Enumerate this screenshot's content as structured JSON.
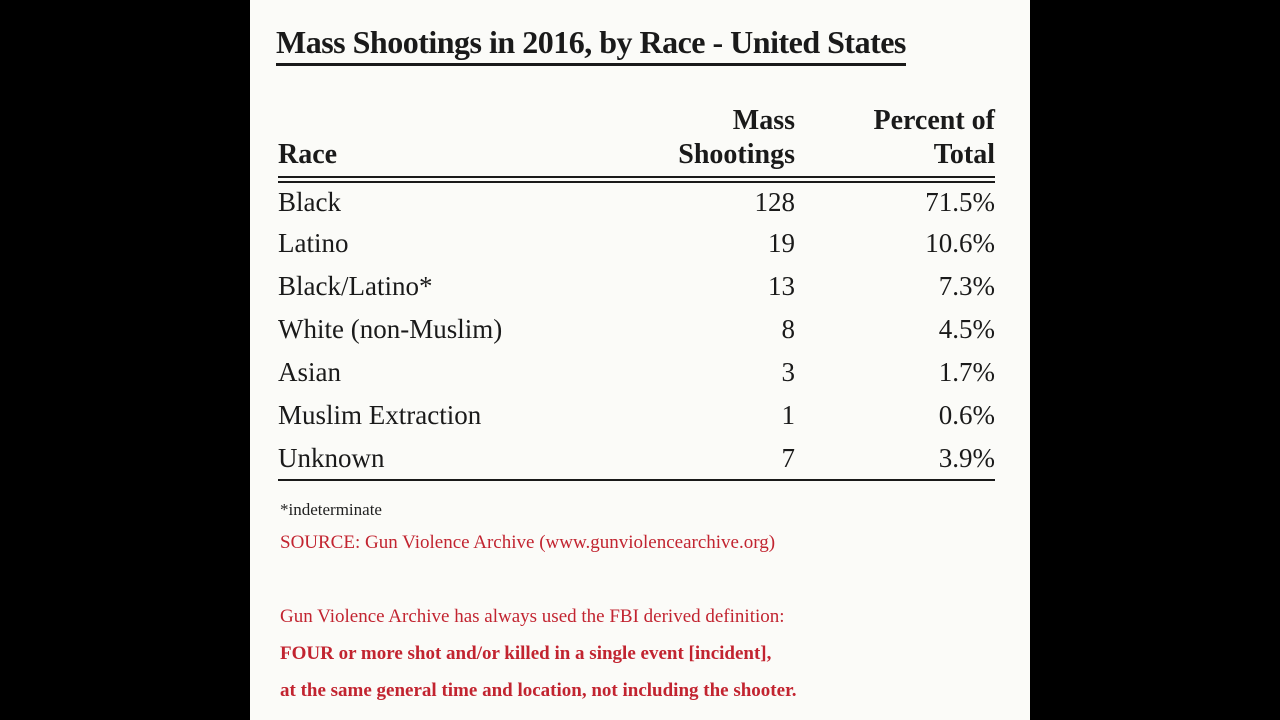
{
  "chart_data": {
    "type": "table",
    "title": "Mass Shootings in 2016, by Race - United States",
    "columns": [
      "Race",
      "Mass Shootings",
      "Percent of Total"
    ],
    "rows": [
      [
        "Black",
        128,
        "71.5%"
      ],
      [
        "Latino",
        19,
        "10.6%"
      ],
      [
        "Black/Latino*",
        13,
        "7.3%"
      ],
      [
        "White (non-Muslim)",
        8,
        "4.5%"
      ],
      [
        "Asian",
        3,
        "1.7%"
      ],
      [
        "Muslim Extraction",
        1,
        "0.6%"
      ],
      [
        "Unknown",
        7,
        "3.9%"
      ]
    ],
    "footnote": "*indeterminate",
    "source": "SOURCE: Gun Violence Archive (www.gunviolencearchive.org)"
  },
  "title": "Mass Shootings in 2016, by Race - United States",
  "table": {
    "headers": {
      "race": "Race",
      "mass_line1": "Mass",
      "mass_line2": "Shootings",
      "pct_line1": "Percent of",
      "pct_line2": "Total"
    },
    "rows": [
      {
        "race": "Black",
        "shootings": "128",
        "percent": "71.5%"
      },
      {
        "race": "Latino",
        "shootings": "19",
        "percent": "10.6%"
      },
      {
        "race": "Black/Latino*",
        "shootings": "13",
        "percent": "7.3%"
      },
      {
        "race": "White (non-Muslim)",
        "shootings": "8",
        "percent": "4.5%"
      },
      {
        "race": "Asian",
        "shootings": "3",
        "percent": "1.7%"
      },
      {
        "race": "Muslim Extraction",
        "shootings": "1",
        "percent": "0.6%"
      },
      {
        "race": "Unknown",
        "shootings": "7",
        "percent": "3.9%"
      }
    ]
  },
  "footnote": "*indeterminate",
  "source_line": "SOURCE: Gun Violence Archive (www.gunviolencearchive.org)",
  "definition": {
    "line1": "Gun Violence Archive has always used the FBI derived definition:",
    "line2": "FOUR or more shot and/or killed in a single event [incident],",
    "line3": "at the same general time and location, not including the shooter."
  },
  "colors": {
    "letterbox_background": "#000000",
    "panel_background": "#fbfbf8",
    "text": "#1a1a1a",
    "red_text": "#c22430"
  }
}
